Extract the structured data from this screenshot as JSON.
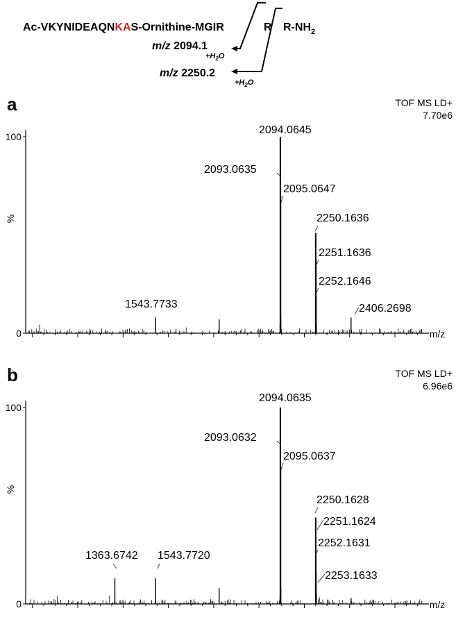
{
  "scheme": {
    "peptide_prefix": "Ac-VKYNIDEAQN",
    "peptide_highlight": "KA",
    "peptide_mid": "S-Ornithine-MGIR",
    "residue_r": "R",
    "peptide_suffix": "R-NH",
    "nh2_subscript": "2",
    "fragment1_mz_label": "m/z",
    "fragment1_mz_value": "2094.1",
    "fragment2_mz_label": "m/z",
    "fragment2_mz_value": "2250.2",
    "water_prefix": "+H",
    "water_subscript": "2",
    "water_suffix": "O",
    "highlight_color": "#d62020"
  },
  "chart_data": [
    {
      "type": "line",
      "panel_letter": "a",
      "instrument": "TOF MS LD+",
      "intensity_max": "7.70e6",
      "xlabel": "m/z",
      "ylabel": "%",
      "xlim": [
        970,
        2750
      ],
      "ylim": [
        0,
        100
      ],
      "xticks": [
        "1000",
        "1200",
        "1400",
        "1600",
        "1800",
        "2000",
        "2200",
        "2400",
        "2600"
      ],
      "yticks": [
        "0",
        "100"
      ],
      "peaks": [
        {
          "mz": 1543.7733,
          "intensity": 8
        },
        {
          "mz": 1824.0,
          "intensity": 7
        },
        {
          "mz": 2093.0635,
          "intensity": 5
        },
        {
          "mz": 2094.0645,
          "intensity": 100
        },
        {
          "mz": 2095.0647,
          "intensity": 70
        },
        {
          "mz": 2096.06,
          "intensity": 8
        },
        {
          "mz": 2250.1636,
          "intensity": 51
        },
        {
          "mz": 2251.1636,
          "intensity": 38
        },
        {
          "mz": 2252.1646,
          "intensity": 19
        },
        {
          "mz": 2253.16,
          "intensity": 4
        },
        {
          "mz": 2406.2698,
          "intensity": 8
        }
      ],
      "labels": [
        {
          "text": "2094.0645",
          "mz": 2094.0645
        },
        {
          "text": "2093.0635",
          "mz": 2093.0635
        },
        {
          "text": "2095.0647",
          "mz": 2095.0647
        },
        {
          "text": "2250.1636",
          "mz": 2250.1636
        },
        {
          "text": "2251.1636",
          "mz": 2251.1636
        },
        {
          "text": "2252.1646",
          "mz": 2252.1646
        },
        {
          "text": "1543.7733",
          "mz": 1543.7733
        },
        {
          "text": "2406.2698",
          "mz": 2406.2698
        }
      ]
    },
    {
      "type": "line",
      "panel_letter": "b",
      "instrument": "TOF MS LD+",
      "intensity_max": "6.96e6",
      "xlabel": "m/z",
      "ylabel": "%",
      "xlim": [
        970,
        2750
      ],
      "ylim": [
        0,
        100
      ],
      "xticks": [
        "1000",
        "1200",
        "1400",
        "1600",
        "1800",
        "2000",
        "2200",
        "2400",
        "2600"
      ],
      "yticks": [
        "0",
        "100"
      ],
      "peaks": [
        {
          "mz": 1363.6742,
          "intensity": 13
        },
        {
          "mz": 1543.772,
          "intensity": 13
        },
        {
          "mz": 1824.0,
          "intensity": 8
        },
        {
          "mz": 2093.0632,
          "intensity": 5
        },
        {
          "mz": 2094.0635,
          "intensity": 100
        },
        {
          "mz": 2095.0637,
          "intensity": 70
        },
        {
          "mz": 2096.06,
          "intensity": 8
        },
        {
          "mz": 2250.1628,
          "intensity": 44
        },
        {
          "mz": 2251.1624,
          "intensity": 30
        },
        {
          "mz": 2252.1631,
          "intensity": 17
        },
        {
          "mz": 2253.1633,
          "intensity": 5
        },
        {
          "mz": 2406.27,
          "intensity": 3
        }
      ],
      "labels": [
        {
          "text": "2094.0635",
          "mz": 2094.0635
        },
        {
          "text": "2093.0632",
          "mz": 2093.0632
        },
        {
          "text": "2095.0637",
          "mz": 2095.0637
        },
        {
          "text": "2250.1628",
          "mz": 2250.1628
        },
        {
          "text": "2251.1624",
          "mz": 2251.1624
        },
        {
          "text": "2252.1631",
          "mz": 2252.1631
        },
        {
          "text": "2253.1633",
          "mz": 2253.1633
        },
        {
          "text": "1363.6742",
          "mz": 1363.6742
        },
        {
          "text": "1543.7720",
          "mz": 1543.772
        }
      ]
    }
  ]
}
